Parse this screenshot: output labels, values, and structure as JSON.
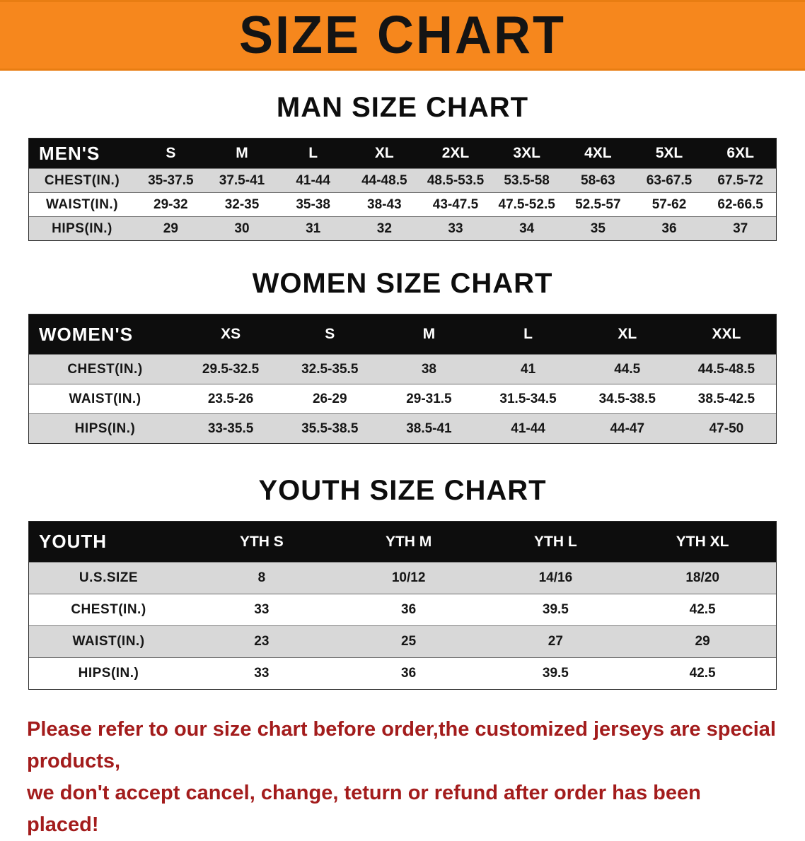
{
  "banner": {
    "title": "SIZE CHART"
  },
  "colors": {
    "banner_orange": "#f6871d",
    "table_header_black": "#0d0d0d",
    "row_gray": "#d8d8d8",
    "row_white": "#ffffff",
    "disclaimer_red": "#a31c1c"
  },
  "chart_data": [
    {
      "type": "table",
      "title": "MAN SIZE CHART",
      "corner_label": "MEN'S",
      "columns": [
        "S",
        "M",
        "L",
        "XL",
        "2XL",
        "3XL",
        "4XL",
        "5XL",
        "6XL"
      ],
      "rows": [
        {
          "label": "CHEST(IN.)",
          "values": [
            "35-37.5",
            "37.5-41",
            "41-44",
            "44-48.5",
            "48.5-53.5",
            "53.5-58",
            "58-63",
            "63-67.5",
            "67.5-72"
          ]
        },
        {
          "label": "WAIST(IN.)",
          "values": [
            "29-32",
            "32-35",
            "35-38",
            "38-43",
            "43-47.5",
            "47.5-52.5",
            "52.5-57",
            "57-62",
            "62-66.5"
          ]
        },
        {
          "label": "HIPS(IN.)",
          "values": [
            "29",
            "30",
            "31",
            "32",
            "33",
            "34",
            "35",
            "36",
            "37"
          ]
        }
      ]
    },
    {
      "type": "table",
      "title": "WOMEN SIZE CHART",
      "corner_label": "WOMEN'S",
      "columns": [
        "XS",
        "S",
        "M",
        "L",
        "XL",
        "XXL"
      ],
      "rows": [
        {
          "label": "CHEST(IN.)",
          "values": [
            "29.5-32.5",
            "32.5-35.5",
            "38",
            "41",
            "44.5",
            "44.5-48.5"
          ]
        },
        {
          "label": "WAIST(IN.)",
          "values": [
            "23.5-26",
            "26-29",
            "29-31.5",
            "31.5-34.5",
            "34.5-38.5",
            "38.5-42.5"
          ]
        },
        {
          "label": "HIPS(IN.)",
          "values": [
            "33-35.5",
            "35.5-38.5",
            "38.5-41",
            "41-44",
            "44-47",
            "47-50"
          ]
        }
      ]
    },
    {
      "type": "table",
      "title": "YOUTH SIZE CHART",
      "corner_label": "YOUTH",
      "columns": [
        "YTH S",
        "YTH M",
        "YTH L",
        "YTH XL"
      ],
      "rows": [
        {
          "label": "U.S.SIZE",
          "values": [
            "8",
            "10/12",
            "14/16",
            "18/20"
          ]
        },
        {
          "label": "CHEST(IN.)",
          "values": [
            "33",
            "36",
            "39.5",
            "42.5"
          ]
        },
        {
          "label": "WAIST(IN.)",
          "values": [
            "23",
            "25",
            "27",
            "29"
          ]
        },
        {
          "label": "HIPS(IN.)",
          "values": [
            "33",
            "36",
            "39.5",
            "42.5"
          ]
        }
      ]
    }
  ],
  "disclaimer": {
    "line1": "Please refer to our size chart before order,the customized jerseys are special products,",
    "line2": "we don't accept cancel, change, teturn or refund after order has been placed!"
  }
}
